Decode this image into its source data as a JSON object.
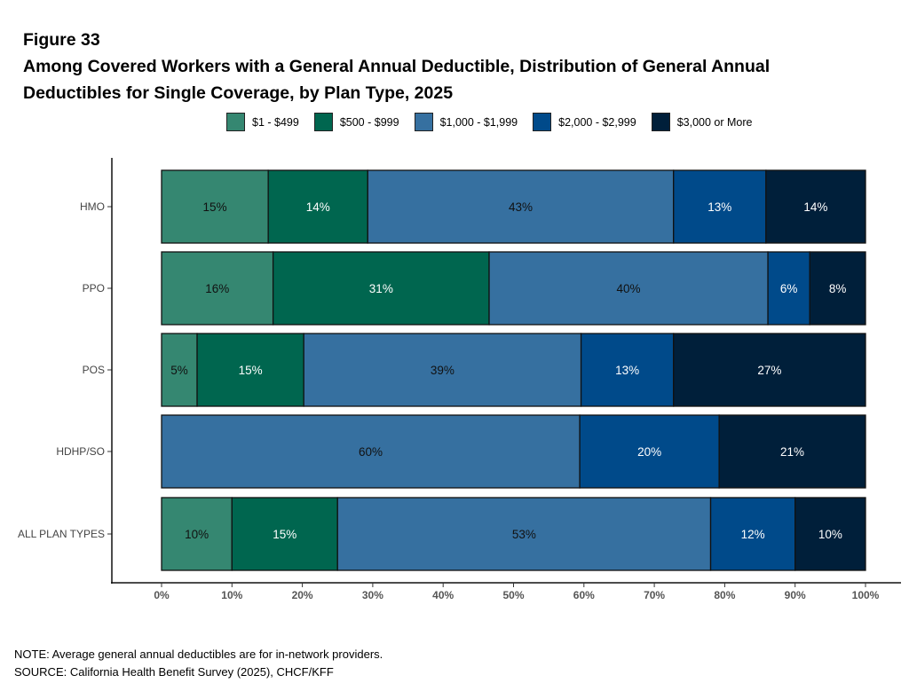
{
  "figure_label": "Figure 33",
  "title_line1": "Among Covered Workers with a General Annual Deductible, Distribution of General Annual",
  "title_line2": "Deductibles for Single Coverage, by Plan Type, 2025",
  "chart_data": {
    "type": "bar",
    "orientation": "horizontal-stacked-100",
    "categories": [
      "HMO",
      "PPO",
      "POS",
      "HDHP/SO",
      "ALL PLAN TYPES"
    ],
    "series": [
      {
        "name": "$1 - $499",
        "color": "#358771",
        "label_color": "#111111",
        "values": [
          15,
          16,
          5,
          0,
          10
        ]
      },
      {
        "name": "$500 - $999",
        "color": "#00664f",
        "label_color": "#ffffff",
        "values": [
          14,
          31,
          15,
          0,
          15
        ]
      },
      {
        "name": "$1,000 - $1,999",
        "color": "#3670a0",
        "label_color": "#111111",
        "values": [
          43,
          40,
          39,
          60,
          53
        ]
      },
      {
        "name": "$2,000 - $2,999",
        "color": "#004a8a",
        "label_color": "#ffffff",
        "values": [
          13,
          6,
          13,
          20,
          12
        ]
      },
      {
        "name": "$3,000 or More",
        "color": "#001f3a",
        "label_color": "#ffffff",
        "values": [
          14,
          8,
          27,
          21,
          10
        ]
      }
    ],
    "xlim": [
      0,
      100
    ],
    "xticks": [
      "0%",
      "10%",
      "20%",
      "30%",
      "40%",
      "50%",
      "60%",
      "70%",
      "80%",
      "90%",
      "100%"
    ],
    "legend": "top",
    "grid": false
  },
  "note": "NOTE: Average general annual deductibles are for in-network providers.",
  "source": "SOURCE: California Health Benefit Survey (2025), CHCF/KFF"
}
